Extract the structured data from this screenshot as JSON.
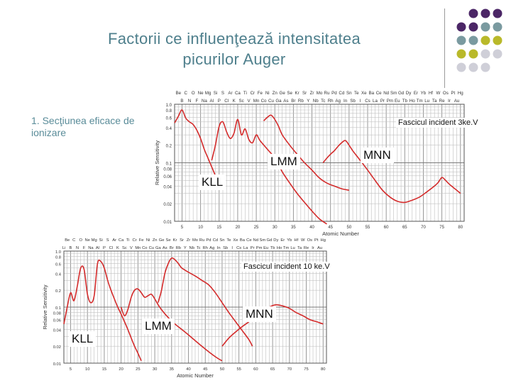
{
  "slide": {
    "title_line1": "Factorii ce influenţează  intensitatea",
    "title_line2": "picurilor Auger",
    "subtitle": "1. Secţiunea eficace de ionizare",
    "dot_colors": [
      "#4b2666",
      "#7a9aa0",
      "#b9b92a",
      "#cfcfd8"
    ]
  },
  "chart_data": [
    {
      "type": "line",
      "element_row1": [
        "Be",
        "C",
        "O",
        "Ne",
        "Mg",
        "Si",
        "S",
        "Ar",
        "Ca",
        "Ti",
        "Cr",
        "Fe",
        "Ni",
        "Zn",
        "Ge",
        "Se",
        "Kr",
        "Sr",
        "Zr",
        "Mo",
        "Ru",
        "Pd",
        "Cd",
        "Sn",
        "Te",
        "Xe",
        "Ba",
        "Ce",
        "Nd",
        "Sm",
        "Gd",
        "Dy",
        "Er",
        "Yb",
        "Hf",
        "W",
        "Os",
        "Pt",
        "Hg"
      ],
      "element_row2": [
        "B",
        "N",
        "F",
        "Na",
        "Al",
        "P",
        "Cl",
        "K",
        "Sc",
        "V",
        "Mn",
        "Co",
        "Cu",
        "Ga",
        "As",
        "Br",
        "Rb",
        "Y",
        "Nb",
        "Tc",
        "Rh",
        "Ag",
        "In",
        "Sb",
        "I",
        "Cs",
        "La",
        "Pr",
        "Pm",
        "Eu",
        "Tb",
        "Ho",
        "Tm",
        "Lu",
        "Ta",
        "Re",
        "Ir",
        "Au"
      ],
      "y_tick_labels": [
        "1.0",
        "0.8",
        "0.6",
        "0.4",
        "0.2",
        "0.1",
        "0.08",
        "0.06",
        "0.04",
        "0.02",
        "0.01"
      ],
      "y_tick_values": [
        1.0,
        0.8,
        0.6,
        0.4,
        0.2,
        0.1,
        0.08,
        0.06,
        0.04,
        0.02,
        0.01
      ],
      "x_tick_labels": [
        "5",
        "10",
        "15",
        "20",
        "25",
        "30",
        "35",
        "40",
        "45",
        "50",
        "55",
        "60",
        "65",
        "70",
        "75",
        "80"
      ],
      "xlim": [
        3,
        81
      ],
      "ylim": [
        0.01,
        1.0
      ],
      "y_scale": "log",
      "xlabel": "Atomic Number",
      "ylabel": "Relative Sensitivity",
      "beam_label": "Fascicul incident 3ke.V",
      "grid": true,
      "series": [
        {
          "name": "KLL",
          "color": "#d42b2b",
          "points": [
            [
              3,
              0.48
            ],
            [
              4,
              0.62
            ],
            [
              5,
              0.8
            ],
            [
              6,
              0.58
            ],
            [
              7,
              0.5
            ],
            [
              8,
              0.45
            ],
            [
              9,
              0.36
            ],
            [
              10,
              0.26
            ],
            [
              11,
              0.17
            ],
            [
              12,
              0.12
            ],
            [
              13,
              0.085
            ],
            [
              14,
              0.06
            ],
            [
              15,
              0.042
            ]
          ]
        },
        {
          "name": "LMM",
          "color": "#d42b2b",
          "points": [
            [
              13,
              0.11
            ],
            [
              14,
              0.2
            ],
            [
              15,
              0.42
            ],
            [
              16,
              0.5
            ],
            [
              17,
              0.34
            ],
            [
              18,
              0.26
            ],
            [
              19,
              0.32
            ],
            [
              20,
              0.55
            ],
            [
              21,
              0.3
            ],
            [
              22,
              0.38
            ],
            [
              23,
              0.25
            ],
            [
              24,
              0.22
            ],
            [
              25,
              0.3
            ],
            [
              26,
              0.24
            ],
            [
              28,
              0.17
            ],
            [
              30,
              0.12
            ],
            [
              32,
              0.07
            ],
            [
              34,
              0.045
            ],
            [
              36,
              0.03
            ],
            [
              38,
              0.021
            ],
            [
              40,
              0.015
            ],
            [
              42,
              0.011
            ],
            [
              44,
              0.009
            ]
          ]
        },
        {
          "name": "LMM-lower",
          "color": "#d42b2b",
          "points": [
            [
              27,
              0.52
            ],
            [
              28,
              0.6
            ],
            [
              29,
              0.65
            ],
            [
              30,
              0.55
            ],
            [
              31,
              0.42
            ],
            [
              32,
              0.3
            ],
            [
              34,
              0.2
            ],
            [
              36,
              0.14
            ],
            [
              38,
              0.1
            ],
            [
              40,
              0.075
            ],
            [
              42,
              0.055
            ],
            [
              44,
              0.045
            ],
            [
              46,
              0.04
            ],
            [
              48,
              0.036
            ],
            [
              50,
              0.034
            ]
          ]
        },
        {
          "name": "MNN",
          "color": "#d42b2b",
          "points": [
            [
              43,
              0.1
            ],
            [
              44,
              0.12
            ],
            [
              45,
              0.14
            ],
            [
              46,
              0.16
            ],
            [
              47,
              0.19
            ],
            [
              48,
              0.22
            ],
            [
              49,
              0.24
            ],
            [
              50,
              0.2
            ],
            [
              51,
              0.16
            ],
            [
              53,
              0.11
            ],
            [
              55,
              0.075
            ],
            [
              57,
              0.05
            ],
            [
              59,
              0.034
            ],
            [
              61,
              0.026
            ],
            [
              63,
              0.022
            ],
            [
              65,
              0.021
            ],
            [
              67,
              0.023
            ],
            [
              69,
              0.026
            ],
            [
              71,
              0.032
            ],
            [
              73,
              0.04
            ],
            [
              74,
              0.046
            ],
            [
              75,
              0.056
            ],
            [
              76,
              0.05
            ],
            [
              77,
              0.043
            ],
            [
              79,
              0.034
            ],
            [
              80,
              0.03
            ]
          ]
        }
      ],
      "labels": [
        {
          "text": "LMM",
          "series": "LMM",
          "at": [
            40,
            0.125
          ]
        },
        {
          "text": "MNN",
          "series": "MNN",
          "at": [
            55,
            0.15
          ]
        },
        {
          "text": "KLL",
          "series": "KLL",
          "at": [
            15,
            0.058
          ]
        }
      ]
    },
    {
      "type": "line",
      "element_row1": [
        "Be",
        "C",
        "O",
        "Ne",
        "Mg",
        "Si",
        "S",
        "Ar",
        "Ca",
        "Ti",
        "Cr",
        "Fe",
        "Ni",
        "Zn",
        "Ge",
        "Se",
        "Kr",
        "Sr",
        "Zr",
        "Mo",
        "Ru",
        "Pd",
        "Cd",
        "Sn",
        "Te",
        "Xe",
        "Ba",
        "Ce",
        "Nd",
        "Sm",
        "Gd",
        "Dy",
        "Er",
        "Yb",
        "Hf",
        "W",
        "Os",
        "Pt",
        "Hg"
      ],
      "element_row2": [
        "Li",
        "B",
        "N",
        "F",
        "Na",
        "Al",
        "P",
        "Cl",
        "K",
        "Sc",
        "V",
        "Mn",
        "Co",
        "Cu",
        "Ga",
        "As",
        "Br",
        "Rb",
        "Y",
        "Nb",
        "Tc",
        "Rh",
        "Ag",
        "In",
        "Sb",
        "I",
        "Cs",
        "La",
        "Pr",
        "Pm",
        "Eu",
        "Tb",
        "Ho",
        "Tm",
        "Lu",
        "Ta",
        "Re",
        "Ir",
        "Au"
      ],
      "y_tick_labels": [
        "1.0",
        "0.8",
        "0.6",
        "0.4",
        "0.2",
        "0.1",
        "0.08",
        "0.06",
        "0.04",
        "0.02",
        "0.01"
      ],
      "y_tick_values": [
        1.0,
        0.8,
        0.6,
        0.4,
        0.2,
        0.1,
        0.08,
        0.06,
        0.04,
        0.02,
        0.01
      ],
      "x_tick_labels": [
        "5",
        "10",
        "15",
        "20",
        "25",
        "30",
        "35",
        "40",
        "45",
        "50",
        "55",
        "60",
        "65",
        "70",
        "75",
        "80"
      ],
      "xlim": [
        3,
        81
      ],
      "ylim": [
        0.01,
        1.0
      ],
      "y_scale": "log",
      "xlabel": "Atomic Number",
      "ylabel": "Relative Sensitivity",
      "beam_label": "Fascicul incident 10 ke.V",
      "grid": true,
      "series": [
        {
          "name": "KLL",
          "color": "#d42b2b",
          "points": [
            [
              3,
              0.05
            ],
            [
              4,
              0.1
            ],
            [
              5,
              0.18
            ],
            [
              6,
              0.13
            ],
            [
              7,
              0.24
            ],
            [
              8,
              0.5
            ],
            [
              9,
              0.47
            ],
            [
              10,
              0.17
            ],
            [
              11,
              0.12
            ],
            [
              12,
              0.16
            ],
            [
              13,
              0.6
            ],
            [
              14,
              0.65
            ],
            [
              15,
              0.5
            ],
            [
              16,
              0.3
            ],
            [
              17,
              0.2
            ],
            [
              18,
              0.14
            ],
            [
              19,
              0.1
            ],
            [
              20,
              0.075
            ],
            [
              21,
              0.055
            ],
            [
              22,
              0.04
            ],
            [
              23,
              0.028
            ],
            [
              24,
              0.02
            ],
            [
              25,
              0.015
            ],
            [
              26,
              0.011
            ]
          ]
        },
        {
          "name": "LMM",
          "color": "#d42b2b",
          "points": [
            [
              20,
              0.1
            ],
            [
              21,
              0.07
            ],
            [
              22,
              0.09
            ],
            [
              23,
              0.15
            ],
            [
              24,
              0.2
            ],
            [
              25,
              0.21
            ],
            [
              26,
              0.18
            ],
            [
              27,
              0.15
            ],
            [
              28,
              0.16
            ],
            [
              29,
              0.17
            ],
            [
              30,
              0.14
            ],
            [
              31,
              0.11
            ],
            [
              32,
              0.09
            ],
            [
              34,
              0.065
            ],
            [
              36,
              0.05
            ],
            [
              38,
              0.04
            ],
            [
              40,
              0.032
            ],
            [
              44,
              0.02
            ],
            [
              48,
              0.013
            ],
            [
              50,
              0.011
            ]
          ]
        },
        {
          "name": "LMM-upper",
          "color": "#d42b2b",
          "points": [
            [
              31,
              0.12
            ],
            [
              32,
              0.2
            ],
            [
              33,
              0.4
            ],
            [
              34,
              0.6
            ],
            [
              35,
              0.75
            ],
            [
              36,
              0.7
            ],
            [
              37,
              0.6
            ],
            [
              38,
              0.5
            ],
            [
              40,
              0.42
            ],
            [
              42,
              0.36
            ],
            [
              44,
              0.3
            ],
            [
              46,
              0.25
            ],
            [
              48,
              0.18
            ],
            [
              50,
              0.12
            ],
            [
              52,
              0.08
            ],
            [
              54,
              0.055
            ],
            [
              56,
              0.038
            ],
            [
              58,
              0.026
            ],
            [
              59,
              0.02
            ]
          ]
        },
        {
          "name": "MNN",
          "color": "#d42b2b",
          "points": [
            [
              50,
              0.02
            ],
            [
              52,
              0.028
            ],
            [
              54,
              0.036
            ],
            [
              56,
              0.045
            ],
            [
              58,
              0.055
            ],
            [
              60,
              0.07
            ],
            [
              62,
              0.085
            ],
            [
              64,
              0.1
            ],
            [
              66,
              0.11
            ],
            [
              68,
              0.105
            ],
            [
              70,
              0.095
            ],
            [
              72,
              0.08
            ],
            [
              74,
              0.07
            ],
            [
              76,
              0.06
            ],
            [
              78,
              0.055
            ],
            [
              80,
              0.05
            ]
          ]
        }
      ],
      "labels": [
        {
          "text": "LMM",
          "series": "LMM",
          "at": [
            24,
            0.05
          ]
        },
        {
          "text": "MNN",
          "series": "MNN",
          "at": [
            44,
            0.075
          ]
        },
        {
          "text": "KLL",
          "series": "KLL",
          "at": [
            8,
            0.03
          ]
        }
      ]
    }
  ]
}
